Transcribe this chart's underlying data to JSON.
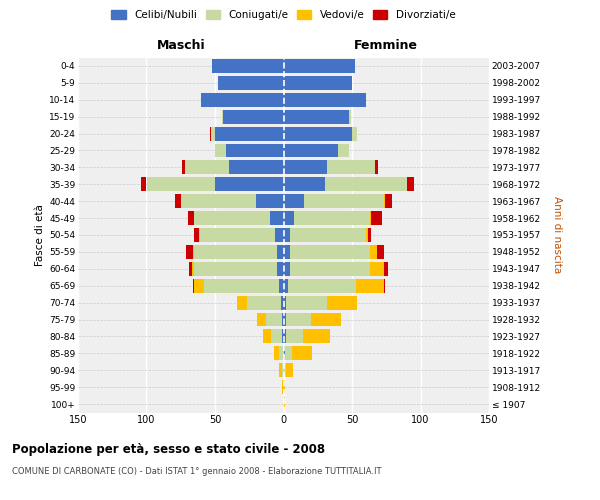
{
  "age_groups": [
    "100+",
    "95-99",
    "90-94",
    "85-89",
    "80-84",
    "75-79",
    "70-74",
    "65-69",
    "60-64",
    "55-59",
    "50-54",
    "45-49",
    "40-44",
    "35-39",
    "30-34",
    "25-29",
    "20-24",
    "15-19",
    "10-14",
    "5-9",
    "0-4"
  ],
  "birth_years": [
    "≤ 1907",
    "1908-1912",
    "1913-1917",
    "1918-1922",
    "1923-1927",
    "1928-1932",
    "1933-1937",
    "1938-1942",
    "1943-1947",
    "1948-1952",
    "1953-1957",
    "1958-1962",
    "1963-1967",
    "1968-1972",
    "1973-1977",
    "1978-1982",
    "1983-1987",
    "1988-1992",
    "1993-1997",
    "1998-2002",
    "2003-2007"
  ],
  "colors": {
    "celibi": "#4472c4",
    "coniugati": "#c8daa4",
    "vedovi": "#ffc000",
    "divorziati": "#cc0000"
  },
  "maschi": {
    "celibi": [
      0,
      0,
      0,
      0,
      1,
      1,
      2,
      3,
      5,
      5,
      6,
      10,
      20,
      50,
      40,
      42,
      50,
      44,
      60,
      48,
      52
    ],
    "coniugati": [
      0,
      0,
      1,
      3,
      8,
      12,
      25,
      55,
      60,
      60,
      55,
      55,
      55,
      50,
      32,
      8,
      3,
      1,
      0,
      0,
      0
    ],
    "vedovi": [
      0,
      1,
      2,
      4,
      6,
      6,
      7,
      7,
      2,
      1,
      1,
      0,
      0,
      0,
      0,
      0,
      0,
      0,
      0,
      0,
      0
    ],
    "divorziati": [
      0,
      0,
      0,
      0,
      0,
      0,
      0,
      1,
      2,
      5,
      3,
      5,
      4,
      4,
      2,
      0,
      1,
      0,
      0,
      0,
      0
    ]
  },
  "femmine": {
    "nubili": [
      0,
      0,
      0,
      1,
      2,
      2,
      2,
      3,
      5,
      5,
      5,
      8,
      15,
      30,
      32,
      40,
      50,
      48,
      60,
      50,
      52
    ],
    "coniugate": [
      0,
      0,
      2,
      5,
      12,
      18,
      30,
      50,
      58,
      58,
      55,
      55,
      58,
      60,
      35,
      8,
      4,
      1,
      0,
      0,
      0
    ],
    "vedove": [
      1,
      1,
      5,
      15,
      20,
      22,
      22,
      20,
      10,
      5,
      2,
      1,
      1,
      0,
      0,
      0,
      0,
      0,
      0,
      0,
      0
    ],
    "divorziate": [
      0,
      0,
      0,
      0,
      0,
      0,
      0,
      1,
      3,
      5,
      2,
      8,
      5,
      5,
      2,
      0,
      0,
      0,
      0,
      0,
      0
    ]
  },
  "title": "Popolazione per età, sesso e stato civile - 2008",
  "subtitle": "COMUNE DI CARBONATE (CO) - Dati ISTAT 1° gennaio 2008 - Elaborazione TUTTITALIA.IT",
  "label_maschi": "Maschi",
  "label_femmine": "Femmine",
  "ylabel_left": "Fasce di età",
  "ylabel_right": "Anni di nascita",
  "xlim": 150,
  "bg_color": "#ffffff",
  "plot_bg": "#efefef",
  "grid_color": "#cccccc",
  "legend_labels": [
    "Celibi/Nubili",
    "Coniugati/e",
    "Vedovi/e",
    "Divorziati/e"
  ]
}
